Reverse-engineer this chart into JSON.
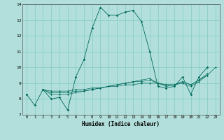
{
  "title": "",
  "xlabel": "Humidex (Indice chaleur)",
  "ylabel": "",
  "bg_color": "#b2dfdb",
  "grid_color": "#80cbc4",
  "line_color": "#00695c",
  "xlim": [
    -0.5,
    23.5
  ],
  "ylim": [
    7,
    14
  ],
  "yticks": [
    7,
    8,
    9,
    10,
    11,
    12,
    13,
    14
  ],
  "xticks": [
    0,
    1,
    2,
    3,
    4,
    5,
    6,
    7,
    8,
    9,
    10,
    11,
    12,
    13,
    14,
    15,
    16,
    17,
    18,
    19,
    20,
    21,
    22,
    23
  ],
  "line1": [
    8.3,
    7.6,
    8.6,
    8.0,
    8.1,
    7.3,
    9.4,
    10.5,
    12.5,
    13.8,
    13.3,
    13.3,
    13.5,
    13.6,
    12.9,
    11.0,
    8.8,
    8.7,
    8.8,
    9.4,
    8.3,
    9.4,
    10.0,
    null
  ],
  "line2": [
    8.3,
    null,
    8.6,
    8.3,
    8.3,
    8.3,
    8.4,
    8.5,
    8.6,
    8.7,
    8.8,
    8.9,
    9.0,
    9.1,
    9.2,
    9.3,
    9.0,
    8.8,
    8.9,
    9.0,
    8.8,
    9.1,
    9.5,
    10.0
  ],
  "line3": [
    8.3,
    null,
    8.6,
    8.5,
    8.5,
    8.5,
    8.6,
    8.6,
    8.7,
    8.7,
    8.8,
    8.8,
    8.9,
    8.9,
    9.0,
    9.0,
    9.0,
    8.9,
    8.9,
    9.1,
    8.9,
    9.2,
    9.6,
    null
  ],
  "line4": [
    8.3,
    null,
    8.6,
    8.4,
    8.4,
    8.4,
    8.5,
    8.5,
    8.6,
    8.7,
    8.8,
    8.9,
    9.0,
    9.1,
    9.1,
    9.2,
    9.0,
    8.9,
    8.9,
    9.1,
    8.9,
    9.2,
    9.5,
    null
  ]
}
